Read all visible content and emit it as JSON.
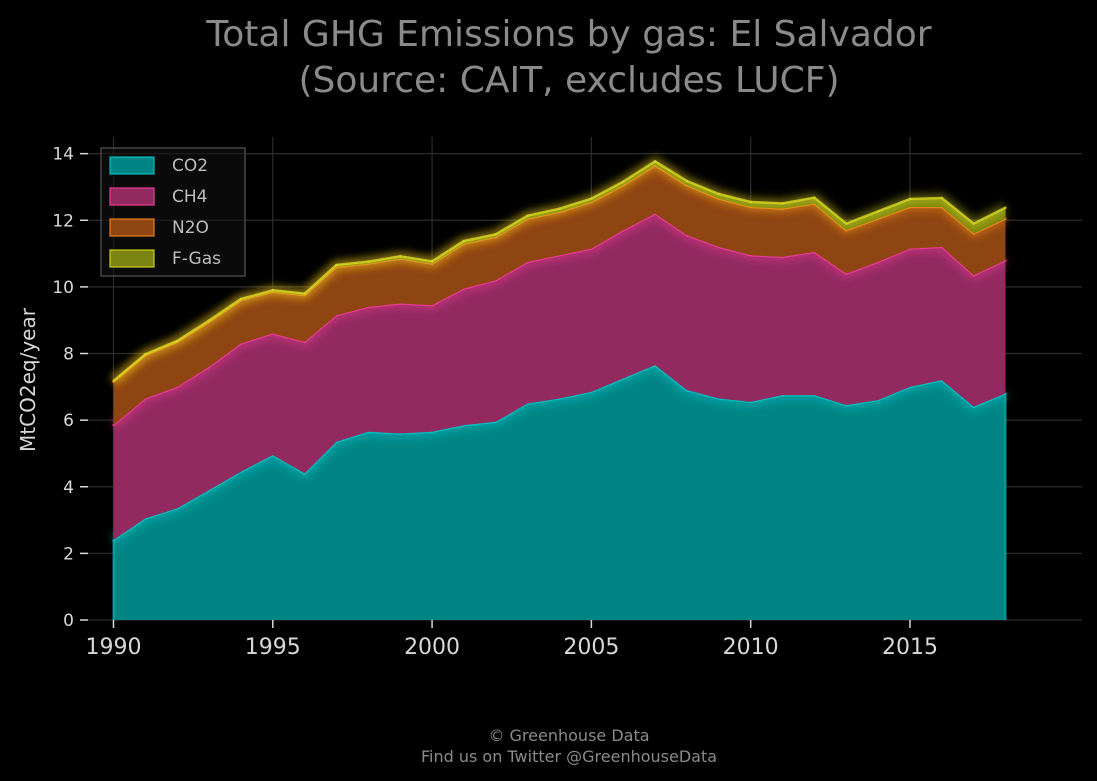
{
  "chart_data": {
    "type": "area",
    "stacked": true,
    "title_lines": [
      "Total GHG Emissions by gas: El Salvador",
      "(Source: CAIT, excludes LUCF)"
    ],
    "xlabel": "",
    "ylabel": "MtCO2eq/year",
    "xlim": [
      1989.2,
      2020.4
    ],
    "ylim": [
      0,
      14.5
    ],
    "x_ticks": [
      1990,
      1995,
      2000,
      2005,
      2010,
      2015
    ],
    "y_ticks": [
      0,
      2,
      4,
      6,
      8,
      10,
      12,
      14
    ],
    "grid": true,
    "legend_position": "top-left",
    "x": [
      1990,
      1991,
      1992,
      1993,
      1994,
      1995,
      1996,
      1997,
      1998,
      1999,
      2000,
      2001,
      2002,
      2003,
      2004,
      2005,
      2006,
      2007,
      2008,
      2009,
      2010,
      2011,
      2012,
      2013,
      2014,
      2015,
      2016,
      2017,
      2018
    ],
    "series": [
      {
        "name": "CO2",
        "color": "#00d0d0",
        "fill": "#008585",
        "values": [
          2.4,
          3.05,
          3.35,
          3.9,
          4.45,
          4.95,
          4.4,
          5.35,
          5.65,
          5.6,
          5.65,
          5.85,
          5.95,
          6.5,
          6.65,
          6.85,
          7.25,
          7.65,
          6.9,
          6.65,
          6.55,
          6.75,
          6.75,
          6.45,
          6.6,
          7.0,
          7.2,
          6.4,
          6.8
        ]
      },
      {
        "name": "CH4",
        "color": "#ff3fa0",
        "fill": "#922a60",
        "values": [
          3.45,
          3.6,
          3.65,
          3.7,
          3.85,
          3.65,
          3.95,
          3.8,
          3.75,
          3.9,
          3.8,
          4.1,
          4.25,
          4.25,
          4.3,
          4.3,
          4.45,
          4.55,
          4.65,
          4.55,
          4.4,
          4.15,
          4.3,
          3.95,
          4.15,
          4.15,
          4.0,
          3.95,
          4.0
        ]
      },
      {
        "name": "N2O",
        "color": "#ff8c1a",
        "fill": "#8e4512",
        "values": [
          1.3,
          1.3,
          1.35,
          1.35,
          1.3,
          1.25,
          1.4,
          1.45,
          1.3,
          1.35,
          1.25,
          1.35,
          1.3,
          1.3,
          1.3,
          1.4,
          1.35,
          1.45,
          1.5,
          1.45,
          1.45,
          1.45,
          1.45,
          1.3,
          1.3,
          1.25,
          1.2,
          1.25,
          1.25
        ]
      },
      {
        "name": "F-Gas",
        "color": "#e0e020",
        "fill": "#7a8410",
        "values": [
          0.03,
          0.03,
          0.03,
          0.04,
          0.04,
          0.05,
          0.05,
          0.06,
          0.06,
          0.07,
          0.07,
          0.08,
          0.08,
          0.09,
          0.1,
          0.1,
          0.11,
          0.12,
          0.13,
          0.14,
          0.15,
          0.16,
          0.18,
          0.2,
          0.22,
          0.24,
          0.27,
          0.3,
          0.33
        ]
      }
    ]
  },
  "footer": {
    "line1": "© Greenhouse Data",
    "line2": "Find us on Twitter @GreenhouseData"
  }
}
